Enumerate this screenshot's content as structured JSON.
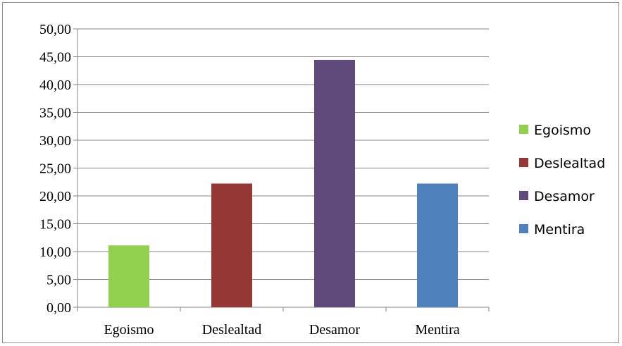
{
  "chart_data": {
    "type": "bar",
    "categories": [
      "Egoismo",
      "Deslealtad",
      "Desamor",
      "Mentira"
    ],
    "values": [
      11.11,
      22.22,
      44.44,
      22.22
    ],
    "colors": [
      "#92D050",
      "#953735",
      "#604A7B",
      "#4F81BD"
    ],
    "y_ticks": [
      "0,00",
      "5,00",
      "10,00",
      "15,00",
      "20,00",
      "25,00",
      "30,00",
      "35,00",
      "40,00",
      "45,00",
      "50,00"
    ],
    "ylim": [
      0,
      50
    ],
    "grid": true,
    "legend_position": "right",
    "title": "",
    "xlabel": "",
    "ylabel": ""
  }
}
